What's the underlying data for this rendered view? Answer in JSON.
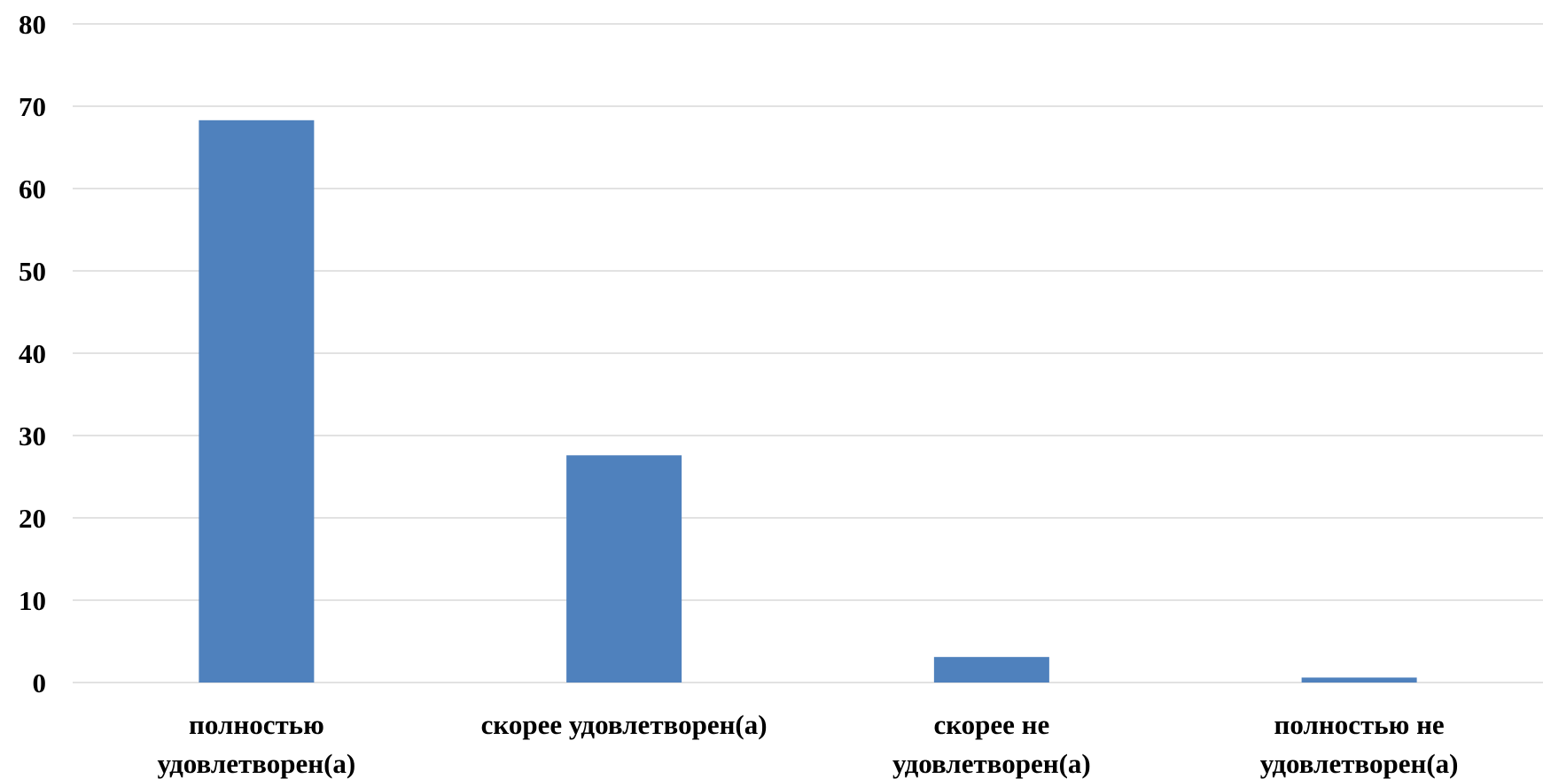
{
  "chart_data": {
    "type": "bar",
    "categories": [
      [
        "полностью",
        "удовлетворен(а)"
      ],
      [
        "скорее удовлетворен(а)"
      ],
      [
        "скорее не",
        "удовлетворен(а)"
      ],
      [
        "полностью не",
        "удовлетворен(а)"
      ]
    ],
    "values": [
      68.3,
      27.6,
      3.1,
      0.6
    ],
    "ylim": [
      0,
      80
    ],
    "yticks": [
      0,
      10,
      20,
      30,
      40,
      50,
      60,
      70,
      80
    ],
    "grid": true,
    "bar_color": "#4f81bd",
    "grid_color": "#d9d9d9"
  }
}
